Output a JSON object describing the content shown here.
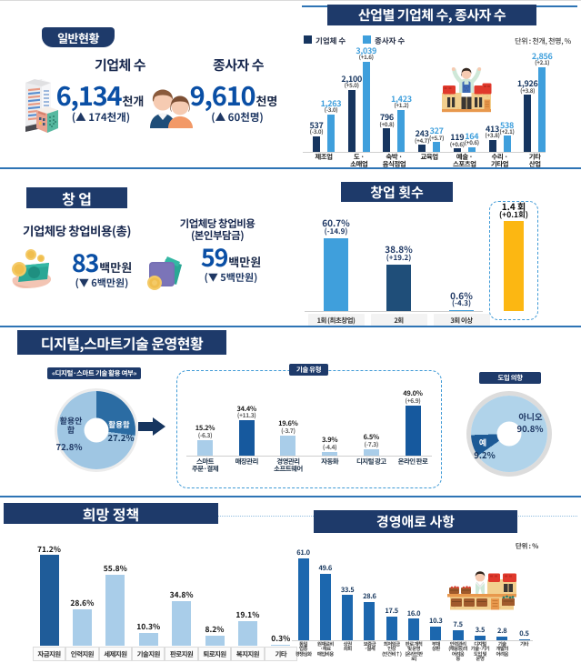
{
  "colors": {
    "header_bg": "#1e3a6a",
    "divider": "#2e74b5",
    "big_number": "#0a4fa5",
    "dark_bar": "#16355f",
    "light_bar": "#3f9fdc",
    "pale_bar": "#a9cde9",
    "mid_bar": "#1c67ae",
    "steel_bar": "#1f5c99",
    "yellow_bar": "#fcb712"
  },
  "general": {
    "badge": "일반현황",
    "company": {
      "title": "기업체 수",
      "value": "6,134",
      "unit": "천개",
      "delta": "(▲ 174천개)"
    },
    "workers": {
      "title": "종사자 수",
      "value": "9,610",
      "unit": "천명",
      "delta": "(▲ 60천명)"
    }
  },
  "industry": {
    "header": "산업별 기업체 수, 종사자 수",
    "legend": [
      "기업체 수",
      "종사자 수"
    ],
    "unit_note": "단위 : 천개, 천명, %"
  },
  "startup": {
    "header": "창 업",
    "total": {
      "title": "기업체당 창업비용(총)",
      "value": "83",
      "unit": "백만원",
      "delta": "(▼ 6백만원)"
    },
    "own": {
      "title_line1": "기업체당 창업비용",
      "title_line2": "(본인부담금)",
      "value": "59",
      "unit": "백만원",
      "delta": "(▼ 5백만원)"
    }
  },
  "startup_count": {
    "header": "창업 횟수"
  },
  "digital": {
    "title": "디지털,스마트기술 운영현황",
    "usage_badge": "«디지털·스마트 기술 활용 여부»",
    "tech_badge": "기술 유형",
    "intent_badge": "도입 의향"
  },
  "policy": {
    "header": "희망 정책"
  },
  "difficulty": {
    "header": "경영애로 사항",
    "unit_note": "단위 : %"
  },
  "chart_data": [
    {
      "id": "industry",
      "type": "bar",
      "title": "산업별 기업체 수, 종사자 수",
      "unit": "천개, 천명",
      "legend_position": "top-left",
      "series": [
        {
          "name": "기업체 수"
        },
        {
          "name": "종사자 수"
        }
      ],
      "colors": {
        "a": "#16355f",
        "b": "#3f9fdc"
      },
      "ylim": [
        0,
        3200
      ],
      "categories": [
        {
          "label_lines": [
            "제조업"
          ],
          "a_text": "537",
          "a_delta": "(-3.0)",
          "b_text": "1,263",
          "b_delta": "(-3.0)"
        },
        {
          "label_lines": [
            "도 ·",
            "소매업"
          ],
          "a_text": "2,100",
          "a_delta": "(+5.0)",
          "b_text": "3,039",
          "b_delta": "(+1.6)"
        },
        {
          "label_lines": [
            "숙박 ·",
            "음식점업"
          ],
          "a_text": "796",
          "a_delta": "(+0.8)",
          "b_text": "1,423",
          "b_delta": "(+1.2)"
        },
        {
          "label_lines": [
            "교육업"
          ],
          "a_text": "243",
          "a_delta": "(+4.7)",
          "b_text": "327",
          "b_delta": "(+5.7)"
        },
        {
          "label_lines": [
            "예술 ·",
            "스포츠업"
          ],
          "a_text": "119",
          "a_delta": "(+0.6)",
          "b_text": "164",
          "b_delta": "(+0.6)"
        },
        {
          "label_lines": [
            "수리 ·",
            "기타업"
          ],
          "a_text": "413",
          "a_delta": "(+3.8)",
          "b_text": "538",
          "b_delta": "(+2.1)"
        },
        {
          "label_lines": [
            "기타",
            "산업"
          ],
          "a_text": "1,926",
          "a_delta": "(+3.8)",
          "b_text": "2,856",
          "b_delta": "(+2.1)"
        }
      ]
    },
    {
      "id": "startup_count",
      "type": "bar",
      "title": "창업 횟수",
      "ylabel": "%",
      "colors": {
        "light": "#3f9fdc",
        "dark": "#1f4e79",
        "yellow": "#fcb712"
      },
      "categories": [
        {
          "label_lines": [
            "1회 (최초창업)"
          ],
          "value_text": "60.7%",
          "delta_text": "(-14.9)",
          "color": "light"
        },
        {
          "label_lines": [
            "2회"
          ],
          "value_text": "38.8%",
          "delta_text": "(+19.2)",
          "color": "dark"
        },
        {
          "label_lines": [
            "3회 이상"
          ],
          "value_text": "0.6%",
          "delta_text": "(-4.3)",
          "color": "light"
        }
      ]
    },
    {
      "id": "startup_count_avg",
      "type": "bar",
      "title": "평균 창업 횟수",
      "colors": {
        "yellow": "#fcb712"
      },
      "categories": [
        {
          "label_lines": [],
          "value_text": "1.4 회",
          "delta_text": "(+0.1회)",
          "color": "yellow"
        }
      ]
    },
    {
      "id": "usage_donut",
      "type": "pie",
      "title": "«디지털·스마트 기술 활용 여부»",
      "from_deg": 0,
      "colors": {
        "dark": "#2b6ca3",
        "light": "#9fc6e3"
      },
      "slices": [
        {
          "label": "활용함",
          "pct": 27.2,
          "pct_text": "27.2%"
        },
        {
          "label": "활용안 함",
          "pct": 72.8,
          "pct_text": "72.8%"
        }
      ],
      "light_label_lines": [
        "활용안",
        "함"
      ]
    },
    {
      "id": "tech",
      "type": "bar",
      "title": "기술 유형",
      "ylabel": "%",
      "colors": {
        "light": "#a9cde9",
        "dark": "#16599e"
      },
      "categories": [
        {
          "label_lines": [
            "스마트",
            "주문·결제"
          ],
          "value_text": "15.2%",
          "delta_text": "(-6.3)",
          "color": "light"
        },
        {
          "label_lines": [
            "매장관리"
          ],
          "value_text": "34.4%",
          "delta_text": "(+11.3)",
          "color": "dark"
        },
        {
          "label_lines": [
            "경영관리",
            "소프트웨어"
          ],
          "value_text": "19.6%",
          "delta_text": "(-3.7)",
          "color": "light"
        },
        {
          "label_lines": [
            "자동화"
          ],
          "value_text": "3.9%",
          "delta_text": "(-4.4)",
          "color": "light"
        },
        {
          "label_lines": [
            "디지털 광고"
          ],
          "value_text": "6.5%",
          "delta_text": "(-7.3)",
          "color": "light"
        },
        {
          "label_lines": [
            "온라인 판로"
          ],
          "value_text": "49.0%",
          "delta_text": "(+6.9)",
          "color": "dark"
        }
      ]
    },
    {
      "id": "intent_donut",
      "type": "pie",
      "title": "도입 의향",
      "from_deg": 235,
      "colors": {
        "dark": "#1d5a96",
        "light": "#b0d3ea"
      },
      "slices": [
        {
          "label": "예",
          "pct": 9.2,
          "pct_text": "9.2%"
        },
        {
          "label": "아니오",
          "pct": 90.8,
          "pct_text": "90.8%"
        }
      ]
    },
    {
      "id": "policy",
      "type": "bar",
      "title": "희망 정책",
      "ylabel": "%",
      "colors": {
        "light": "#a9cde9",
        "dark": "#1f5c99"
      },
      "categories": [
        {
          "label_lines": [
            "자금지원"
          ],
          "value_text": "71.2%",
          "color": "dark"
        },
        {
          "label_lines": [
            "인력지원"
          ],
          "value_text": "28.6%",
          "color": "light"
        },
        {
          "label_lines": [
            "세제지원"
          ],
          "value_text": "55.8%",
          "color": "light"
        },
        {
          "label_lines": [
            "기술지원"
          ],
          "value_text": "10.3%",
          "color": "light"
        },
        {
          "label_lines": [
            "판로지원"
          ],
          "value_text": "34.8%",
          "color": "light"
        },
        {
          "label_lines": [
            "퇴로지원"
          ],
          "value_text": "8.2%",
          "color": "light"
        },
        {
          "label_lines": [
            "복지지원"
          ],
          "value_text": "19.1%",
          "color": "light"
        },
        {
          "label_lines": [
            "기타"
          ],
          "value_text": "0.3%",
          "color": "light"
        }
      ]
    },
    {
      "id": "difficulty",
      "type": "bar",
      "title": "경영애로 사항",
      "unit": "%",
      "colors": {
        "mid": "#1c67ae"
      },
      "categories": [
        {
          "label_lines": [
            "동일",
            "업종",
            "경쟁심화"
          ],
          "value_text": "61.0",
          "color": "mid"
        },
        {
          "label_lines": [
            "원재료비",
            "·재료",
            "매입비용"
          ],
          "value_text": "49.6",
          "color": "mid"
        },
        {
          "label_lines": [
            "상권",
            "쇠퇴"
          ],
          "value_text": "33.5",
          "color": "mid"
        },
        {
          "label_lines": [
            "보증금",
            "·월세"
          ],
          "value_text": "28.6",
          "color": "mid"
        },
        {
          "label_lines": [
            "최저임금",
            "인상",
            "(인건비↑)"
          ],
          "value_text": "17.5",
          "color": "mid"
        },
        {
          "label_lines": [
            "판로 개척",
            "및 운영",
            "(온라인판",
            "로)"
          ],
          "value_text": "16.0",
          "color": "mid"
        },
        {
          "label_lines": [
            "부채",
            "상환"
          ],
          "value_text": "10.3",
          "color": "mid"
        },
        {
          "label_lines": [
            "인력관리",
            "(채용등)의",
            "어려움",
            "등"
          ],
          "value_text": "7.5",
          "color": "mid"
        },
        {
          "label_lines": [
            "디지털",
            "기술·기기",
            "도입 및",
            "운영"
          ],
          "value_text": "3.5",
          "color": "mid"
        },
        {
          "label_lines": [
            "기술",
            "개발의",
            "어려움"
          ],
          "value_text": "2.8",
          "color": "mid"
        },
        {
          "label_lines": [
            "기타"
          ],
          "value_text": "0.5",
          "color": "mid"
        }
      ]
    }
  ]
}
